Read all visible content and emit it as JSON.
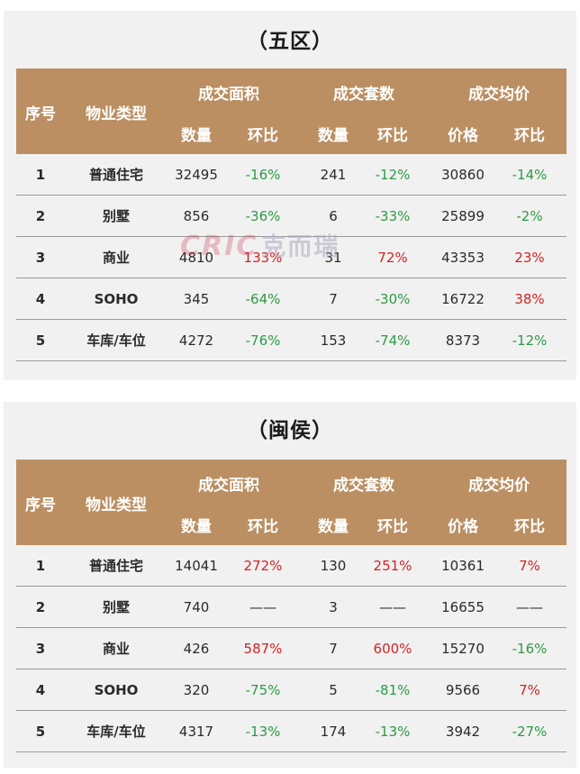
{
  "tables": [
    {
      "title": "（五区）",
      "headers": {
        "index": "序号",
        "type": "物业类型",
        "groups": [
          "成交面积",
          "成交套数",
          "成交均价"
        ],
        "sub": [
          "数量",
          "环比",
          "数量",
          "环比",
          "价格",
          "环比"
        ]
      },
      "rows": [
        [
          "1",
          "普通住宅",
          "32495",
          "-16%",
          "241",
          "-12%",
          "30860",
          "-14%"
        ],
        [
          "2",
          "别墅",
          "856",
          "-36%",
          "6",
          "-33%",
          "25899",
          "-2%"
        ],
        [
          "3",
          "商业",
          "4810",
          "133%",
          "31",
          "72%",
          "43353",
          "23%"
        ],
        [
          "4",
          "SOHO",
          "345",
          "-64%",
          "7",
          "-30%",
          "16722",
          "38%"
        ],
        [
          "5",
          "车库/车位",
          "4272",
          "-76%",
          "153",
          "-74%",
          "8373",
          "-12%"
        ]
      ]
    },
    {
      "title": "（闽侯）",
      "headers": {
        "index": "序号",
        "type": "物业类型",
        "groups": [
          "成交面积",
          "成交套数",
          "成交均价"
        ],
        "sub": [
          "数量",
          "环比",
          "数量",
          "环比",
          "价格",
          "环比"
        ]
      },
      "rows": [
        [
          "1",
          "普通住宅",
          "14041",
          "272%",
          "130",
          "251%",
          "10361",
          "7%"
        ],
        [
          "2",
          "别墅",
          "740",
          "——",
          "3",
          "——",
          "16655",
          "——"
        ],
        [
          "3",
          "商业",
          "426",
          "587%",
          "7",
          "600%",
          "15270",
          "-16%"
        ],
        [
          "4",
          "SOHO",
          "320",
          "-75%",
          "5",
          "-81%",
          "9566",
          "7%"
        ],
        [
          "5",
          "车库/车位",
          "4317",
          "-13%",
          "174",
          "-13%",
          "3942",
          "-27%"
        ]
      ]
    }
  ],
  "watermark": {
    "latin": "CRIC",
    "cn": "克而瑞"
  },
  "colors": {
    "header_bg": "#bb8f62",
    "panel_bg": "#f1f1f1",
    "negative": "#2e9a45",
    "positive": "#d12424"
  }
}
